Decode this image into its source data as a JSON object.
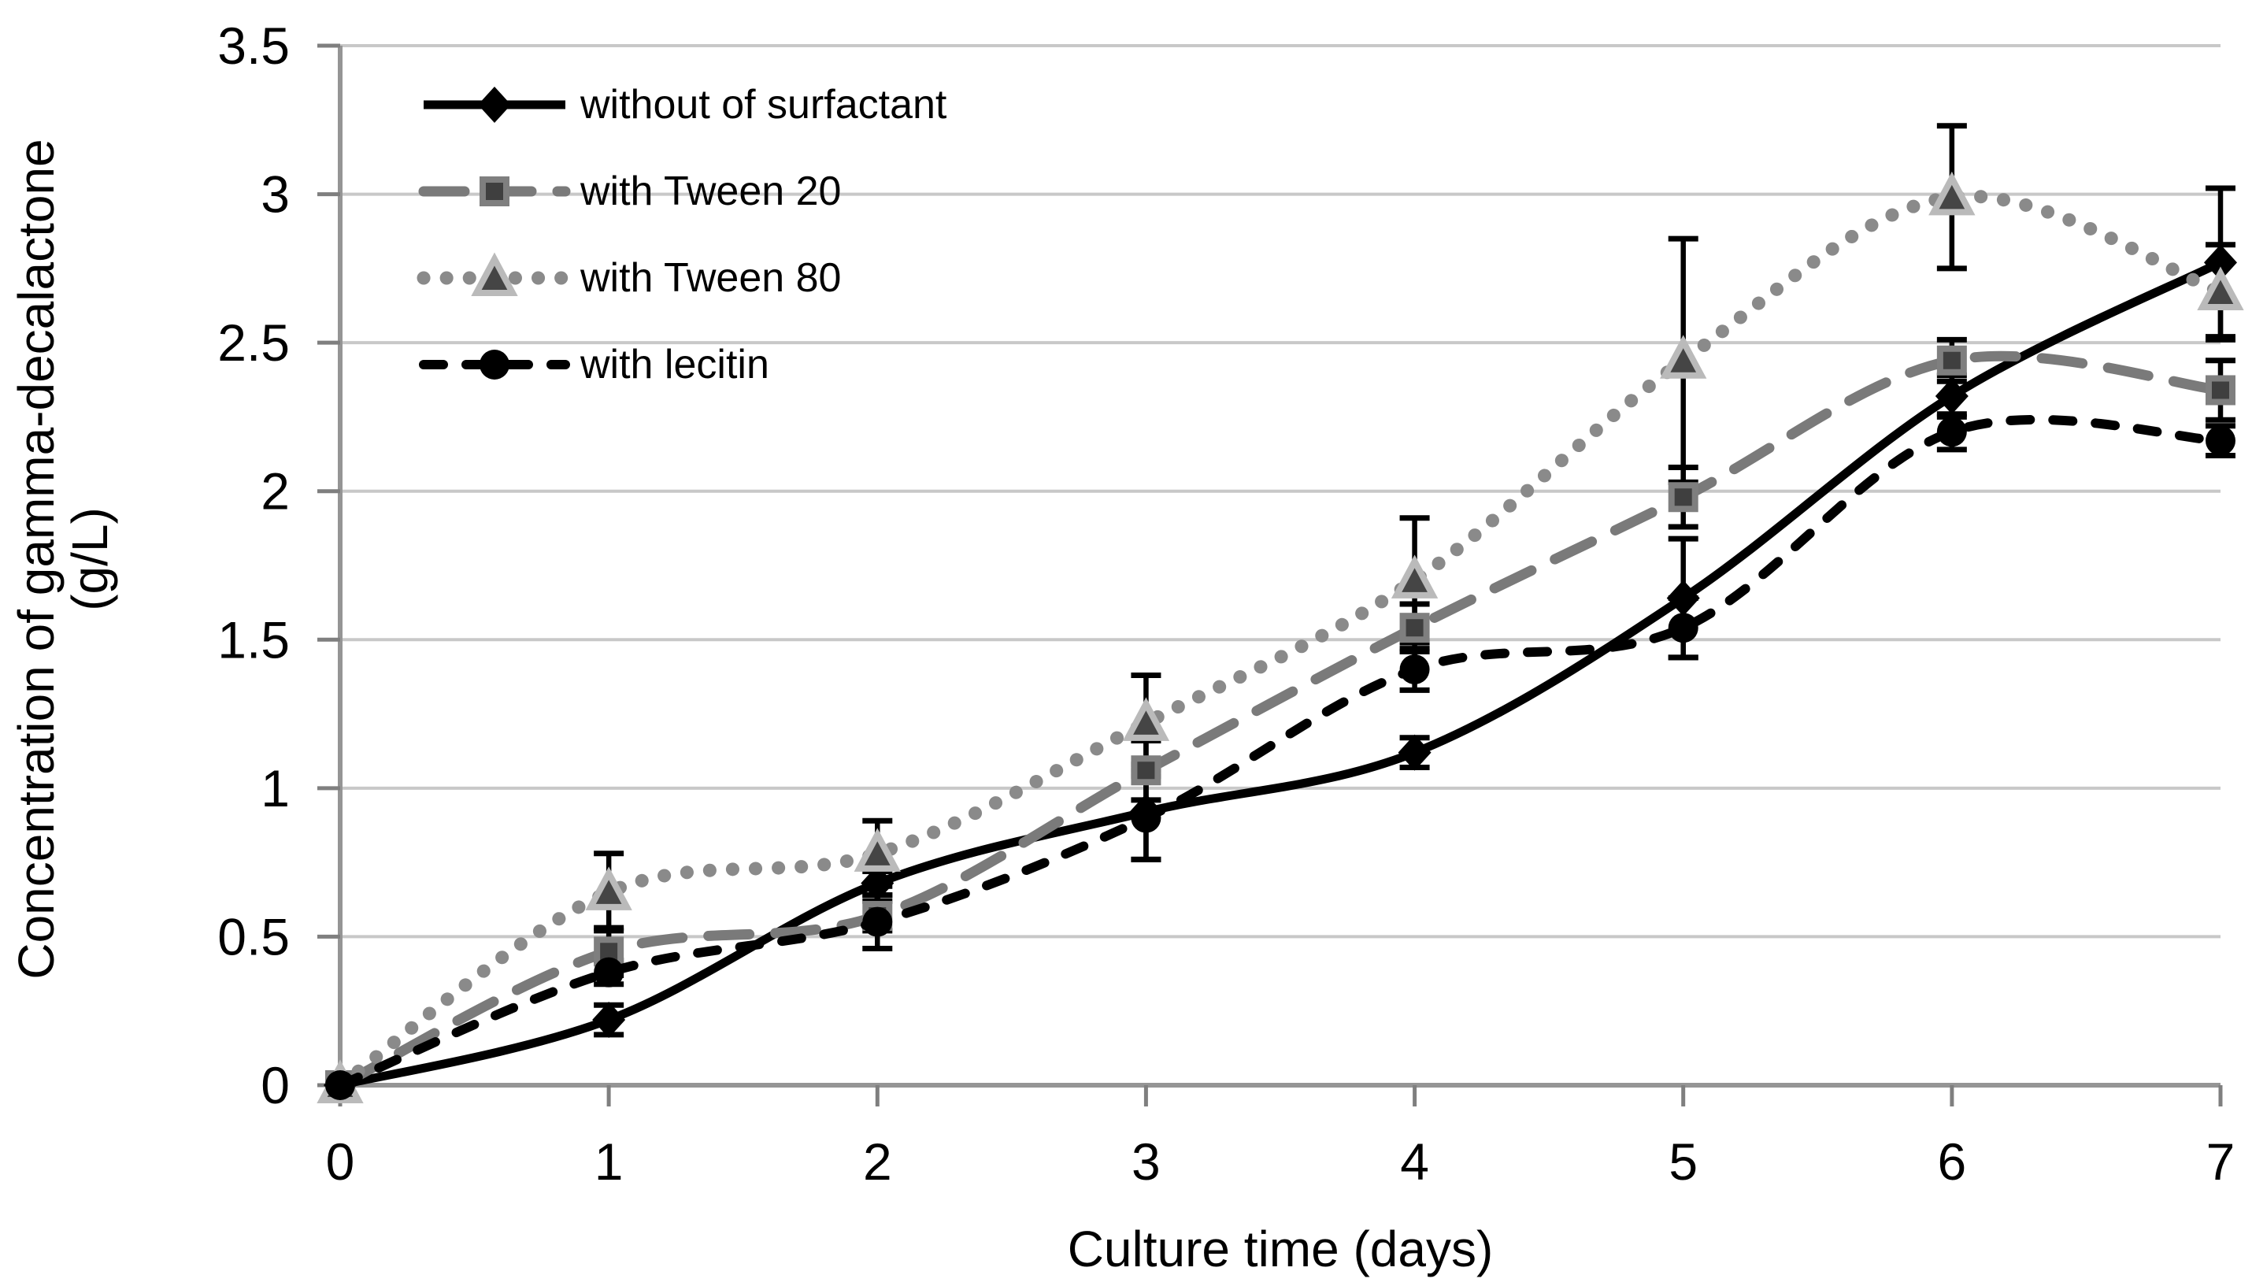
{
  "figure": {
    "background": "#ffffff"
  },
  "chart_data": {
    "type": "line",
    "title": "",
    "xlabel": "Culture time (days)",
    "ylabel_line1": "Concentration of gamma-decalactone",
    "ylabel_line2": "(g/L)",
    "x": [
      0,
      1,
      2,
      3,
      4,
      5,
      6,
      7
    ],
    "xlim": [
      0,
      7
    ],
    "ylim": [
      0,
      3.5
    ],
    "xticks": [
      "0",
      "1",
      "2",
      "3",
      "4",
      "5",
      "6",
      "7"
    ],
    "yticks": [
      "0",
      "0.5",
      "1",
      "1.5",
      "2",
      "2.5",
      "3",
      "3.5"
    ],
    "grid": "horizontal",
    "legend_position": "top-left-inside",
    "error_bars": true,
    "series": [
      {
        "name": "without of surfactant",
        "marker": "diamond",
        "line_style": "solid",
        "color": "#000000",
        "marker_fill": "#000000",
        "marker_stroke": "#000000",
        "values": [
          0,
          0.22,
          0.68,
          0.92,
          1.12,
          1.64,
          2.32,
          2.77
        ],
        "errors": [
          0,
          0.05,
          0.04,
          0.16,
          0.05,
          0.2,
          0.07,
          0.25
        ]
      },
      {
        "name": "with Tween 20",
        "marker": "square",
        "line_style": "long-dash",
        "color": "#7a7a7a",
        "marker_fill": "#3f3f3f",
        "marker_stroke": "#7f7f7f",
        "values": [
          0,
          0.45,
          0.57,
          1.06,
          1.54,
          1.98,
          2.44,
          2.34
        ],
        "errors": [
          0,
          0.08,
          0.05,
          0.1,
          0.08,
          0.1,
          0.07,
          0.1
        ]
      },
      {
        "name": "with Tween 80",
        "marker": "triangle",
        "line_style": "dotted",
        "color": "#8a8a8a",
        "marker_fill": "#454545",
        "marker_stroke": "#bababa",
        "values": [
          0,
          0.65,
          0.78,
          1.22,
          1.7,
          2.44,
          2.99,
          2.67
        ],
        "errors": [
          0,
          0.13,
          0.11,
          0.16,
          0.21,
          0.41,
          0.24,
          0.16
        ]
      },
      {
        "name": "with lecitin",
        "marker": "circle",
        "line_style": "short-dash",
        "color": "#000000",
        "marker_fill": "#000000",
        "marker_stroke": "#000000",
        "values": [
          0,
          0.38,
          0.55,
          0.9,
          1.4,
          1.54,
          2.2,
          2.17
        ],
        "errors": [
          0,
          0.04,
          0.09,
          0.14,
          0.07,
          0.1,
          0.06,
          0.05
        ]
      }
    ],
    "colors": {
      "gridline": "#c8c8c8",
      "axis": "#959595",
      "tick": "#7f7f7f",
      "error_bar": "#000000",
      "text": "#000000"
    }
  }
}
